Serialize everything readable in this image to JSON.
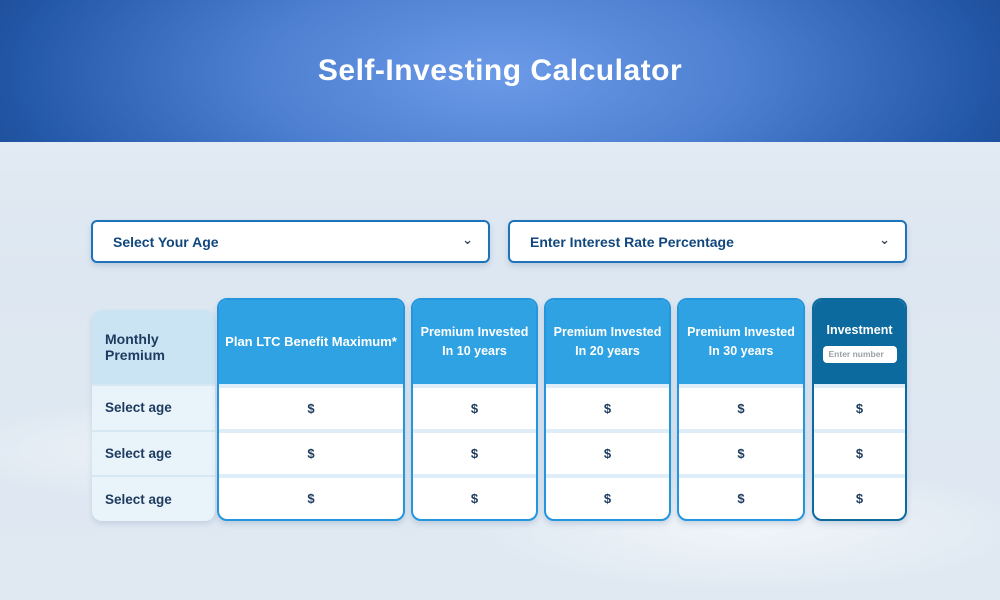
{
  "banner": {
    "title": "Self-Investing Calculator"
  },
  "theme": {
    "banner_gradient_center": "#6b9ae8",
    "banner_gradient_edge": "#164489",
    "accent_blue": "#2ea2e2",
    "dark_blue": "#0d6a9e",
    "select_border_blue": "#1c73b9",
    "text_navy": "#1d3b5f",
    "page_background": "#dde7f1"
  },
  "filters": {
    "age_select": {
      "value": "Select Your Age",
      "chevron_icon": "⌄"
    },
    "rate_select": {
      "value": "Enter Interest Rate Percentage",
      "chevron_icon": "⌄"
    }
  },
  "table": {
    "monthly_premium": {
      "header": "Monthly Premium",
      "rows": [
        "Select age",
        "Select age",
        "Select age"
      ]
    },
    "columns": [
      {
        "id": "plan-ltc-benefit-maximum",
        "header": "Plan LTC Benefit Maximum*",
        "values": [
          "$",
          "$",
          "$"
        ]
      },
      {
        "id": "premium-invested-10-years",
        "header": "Premium Invested In 10 years",
        "values": [
          "$",
          "$",
          "$"
        ]
      },
      {
        "id": "premium-invested-20-years",
        "header": "Premium Invested In 20 years",
        "values": [
          "$",
          "$",
          "$"
        ]
      },
      {
        "id": "premium-invested-30-years",
        "header": "Premium Invested In 30 years",
        "values": [
          "$",
          "$",
          "$"
        ]
      },
      {
        "id": "investment",
        "header": "Investment",
        "input_placeholder": "Enter number",
        "input_value": "",
        "values": [
          "$",
          "$",
          "$"
        ]
      }
    ]
  }
}
